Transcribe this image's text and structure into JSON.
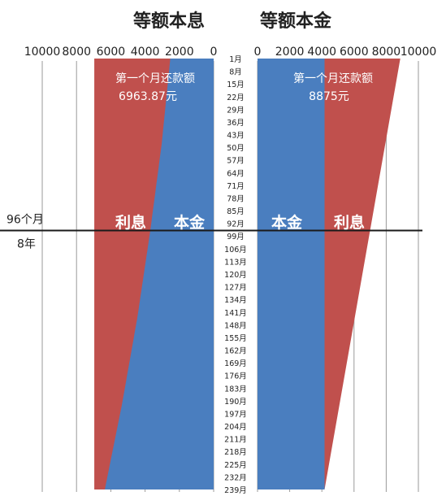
{
  "chart_data": [
    {
      "type": "area",
      "title": "等额本息",
      "orientation": "horizontal",
      "x_axis_reversed": true,
      "xlim": [
        0,
        10000
      ],
      "x_ticks": [
        "10000",
        "8000",
        "6000",
        "4000",
        "2000",
        "0"
      ],
      "series": [
        {
          "name": "本金",
          "color": "#4a7ebf",
          "points": [
            [
              1,
              2529
            ],
            [
              48,
              3030
            ],
            [
              96,
              3697
            ],
            [
              144,
              4450
            ],
            [
              192,
              5350
            ],
            [
              239,
              6350
            ]
          ]
        },
        {
          "name": "利息",
          "color": "#c0504d",
          "total_constant": 6963.87
        }
      ],
      "annotation": {
        "label": "第一个月还款额",
        "value": "6963.87元"
      }
    },
    {
      "type": "area",
      "title": "等额本金",
      "orientation": "horizontal",
      "xlim": [
        0,
        10000
      ],
      "x_ticks": [
        "0",
        "2000",
        "4000",
        "6000",
        "8000",
        "10000"
      ],
      "series": [
        {
          "name": "本金",
          "color": "#4a7ebf",
          "constant": 4167
        },
        {
          "name": "利息",
          "color": "#c0504d",
          "points": [
            [
              1,
              8875
            ],
            [
              239,
              4167
            ]
          ]
        }
      ],
      "annotation": {
        "label": "第一个月还款额",
        "value": "8875元"
      }
    }
  ],
  "months": {
    "first": 1,
    "last": 239,
    "step": 7,
    "suffix": "月",
    "labels": [
      "1月",
      "8月",
      "15月",
      "22月",
      "29月",
      "36月",
      "43月",
      "50月",
      "57月",
      "64月",
      "71月",
      "78月",
      "85月",
      "92月",
      "99月",
      "106月",
      "113月",
      "120月",
      "127月",
      "134月",
      "141月",
      "148月",
      "155月",
      "162月",
      "169月",
      "176月",
      "183月",
      "190月",
      "197月",
      "204月",
      "211月",
      "218月",
      "225月",
      "232月",
      "239月"
    ]
  },
  "marker": {
    "month": 96,
    "label_top": "96个月",
    "label_bottom": "8年"
  },
  "colors": {
    "interest": "#c0504d",
    "principal": "#4a7ebf",
    "grid": "#9a9a9a",
    "text": "#222222"
  }
}
